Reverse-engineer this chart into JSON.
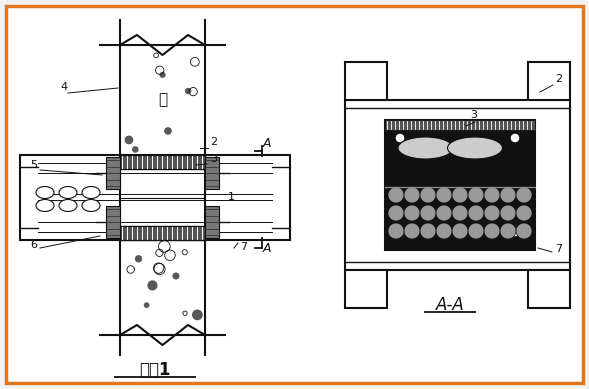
{
  "bg_color": "#f2f2f2",
  "border_color": "#E07820",
  "line_color": "#111111",
  "title_left": "方案1",
  "title_right": "A-A",
  "label_wall": "墙",
  "fig_w": 5.89,
  "fig_h": 3.89,
  "dpi": 100
}
